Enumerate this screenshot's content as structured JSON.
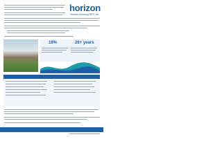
{
  "header": {
    "logo": "horizon",
    "subtitle": "Horizon Housing REIT plc"
  },
  "stats": [
    "18%",
    "26+ years"
  ]
}
